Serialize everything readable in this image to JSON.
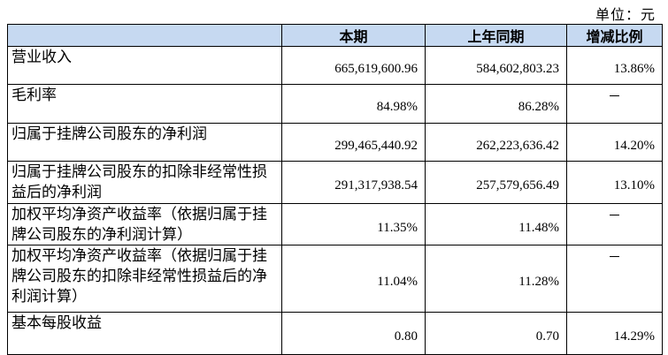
{
  "unit": "单位：元",
  "table": {
    "header": [
      "",
      "本期",
      "上年同期",
      "增减比例"
    ],
    "rows": [
      [
        "营业收入",
        "665,619,600.96",
        "584,602,803.23",
        "13.86%"
      ],
      [
        "毛利率",
        "84.98%",
        "86.28%",
        "－"
      ],
      [
        "归属于挂牌公司股东的净利润",
        "299,465,440.92",
        "262,223,636.42",
        "14.20%"
      ],
      [
        "归属于挂牌公司股东的扣除非经常性损益后的净利润",
        "291,317,938.54",
        "257,579,656.49",
        "13.10%"
      ],
      [
        "加权平均净资产收益率（依据归属于挂牌公司股东的净利润计算）",
        "11.35%",
        "11.48%",
        "－"
      ],
      [
        "加权平均净资产收益率（依据归属于挂牌公司股东的扣除非经常性损益后的净利润计算）",
        "11.04%",
        "11.28%",
        "－"
      ],
      [
        "基本每股收益",
        "0.80",
        "0.70",
        "14.29%"
      ]
    ]
  }
}
